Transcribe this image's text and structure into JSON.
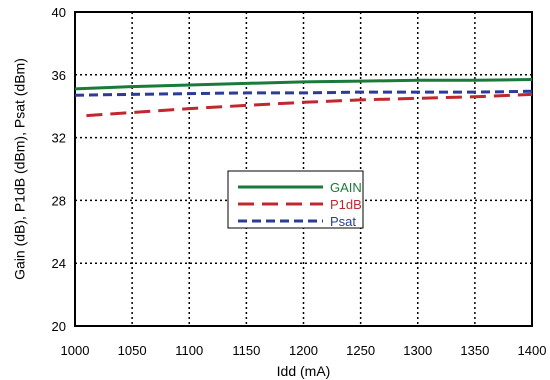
{
  "chart_data": {
    "type": "line",
    "title": "",
    "xlabel": "Idd (mA)",
    "ylabel": "Gain (dB), P1dB (dBm), Psat (dBm)",
    "xlim": [
      1000,
      1400
    ],
    "ylim": [
      20,
      40
    ],
    "xticks": [
      1000,
      1050,
      1100,
      1150,
      1200,
      1250,
      1300,
      1350,
      1400
    ],
    "yticks": [
      20,
      24,
      28,
      32,
      36,
      40
    ],
    "grid": true,
    "legend_position": "center",
    "series": [
      {
        "name": "GAIN",
        "color": "#1a7a3a",
        "style": "solid",
        "x": [
          1000,
          1050,
          1100,
          1150,
          1200,
          1250,
          1300,
          1350,
          1400
        ],
        "y": [
          35.1,
          35.25,
          35.35,
          35.45,
          35.55,
          35.6,
          35.65,
          35.65,
          35.7
        ]
      },
      {
        "name": "P1dB",
        "color": "#c0282d",
        "style": "long-dash",
        "x": [
          1010,
          1050,
          1100,
          1150,
          1200,
          1250,
          1300,
          1350,
          1400
        ],
        "y": [
          33.4,
          33.6,
          33.85,
          34.05,
          34.25,
          34.4,
          34.5,
          34.6,
          34.75
        ]
      },
      {
        "name": "Psat",
        "color": "#2a3c96",
        "style": "short-dash",
        "x": [
          1000,
          1050,
          1100,
          1150,
          1200,
          1250,
          1300,
          1350,
          1400
        ],
        "y": [
          34.7,
          34.75,
          34.8,
          34.85,
          34.85,
          34.9,
          34.9,
          34.9,
          34.95
        ]
      }
    ]
  }
}
